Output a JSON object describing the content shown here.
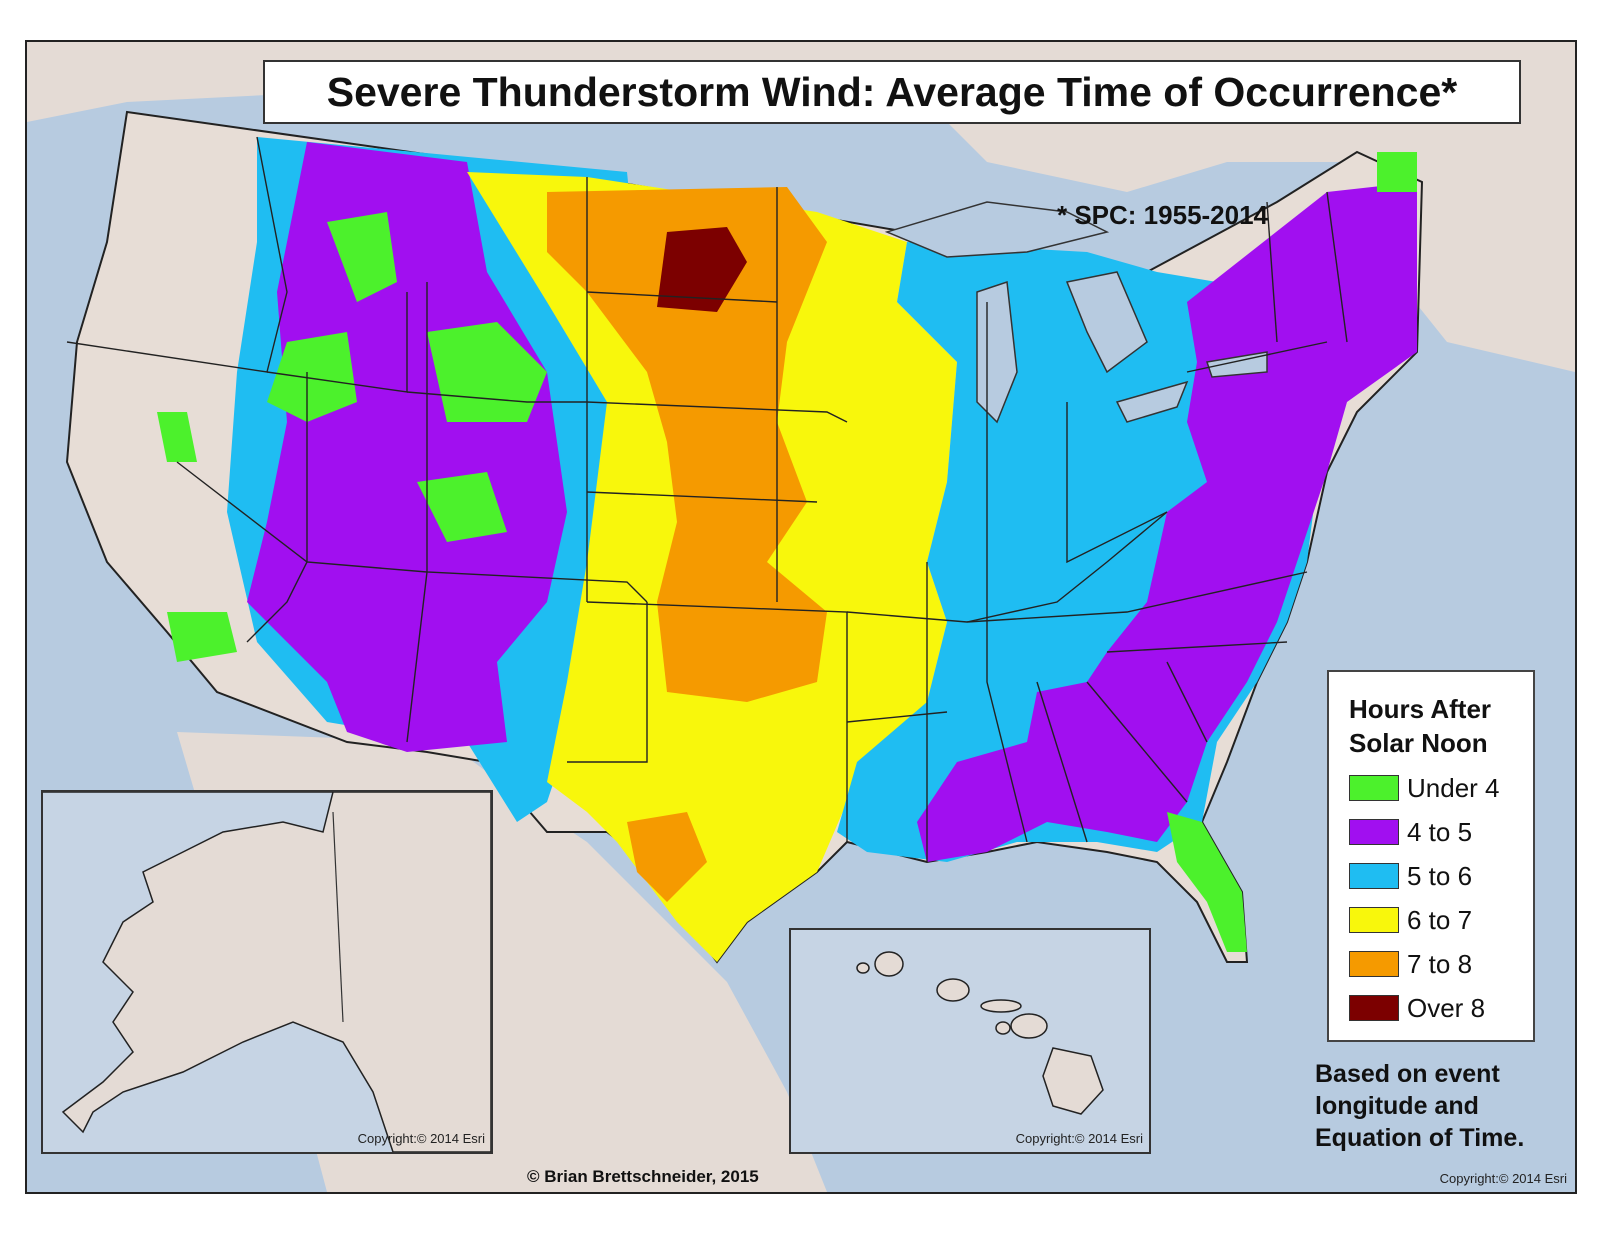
{
  "map": {
    "title": "Severe Thunderstorm Wind: Average Time of Occurrence*",
    "source_note": "* SPC: 1955-2014",
    "basis_note": "Based on event longitude and Equation of Time.",
    "author_credit": "© Brian Brettschneider, 2015",
    "copyright_main": "Copyright:© 2014 Esri",
    "copyright_alaska": "Copyright:© 2014 Esri",
    "copyright_hawaii": "Copyright:© 2014 Esri"
  },
  "legend": {
    "title_line1": "Hours After",
    "title_line2": "Solar Noon",
    "items": [
      {
        "label": "Under 4",
        "color": "#4cf12c"
      },
      {
        "label": "4 to 5",
        "color": "#a10ff0"
      },
      {
        "label": "5 to 6",
        "color": "#1fbdf2"
      },
      {
        "label": "6 to 7",
        "color": "#f8f70c"
      },
      {
        "label": "7 to 8",
        "color": "#f59a00"
      },
      {
        "label": "Over 8",
        "color": "#7c0000"
      }
    ]
  },
  "colors": {
    "water": "#b7cbe0",
    "land": "#e7ddd6",
    "border": "#222222"
  }
}
